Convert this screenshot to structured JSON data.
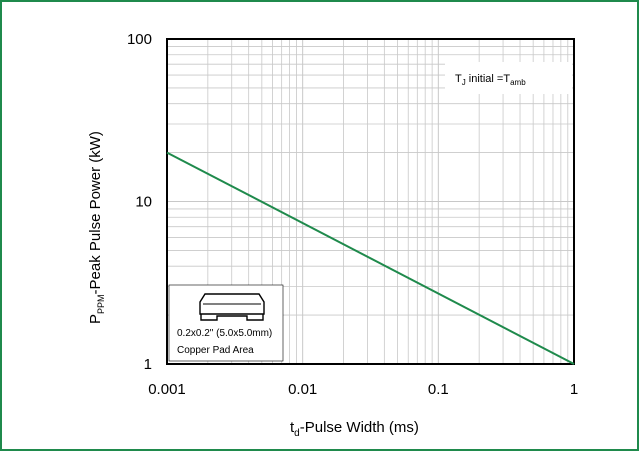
{
  "chart_data": {
    "type": "line",
    "x_scale": "log",
    "y_scale": "log",
    "xlim": [
      0.001,
      1
    ],
    "ylim": [
      1,
      100
    ],
    "grid": true,
    "xlabel_main": "t",
    "xlabel_sub": "d",
    "xlabel_rest": "-Pulse Width (ms)",
    "ylabel_main": "P",
    "ylabel_sub": "PPM",
    "ylabel_rest": "-Peak Pulse Power (kW)",
    "x_ticks": [
      {
        "value": 0.001,
        "label": "0.001"
      },
      {
        "value": 0.01,
        "label": "0.01"
      },
      {
        "value": 0.1,
        "label": "0.1"
      },
      {
        "value": 1,
        "label": "1"
      }
    ],
    "y_ticks": [
      {
        "value": 1,
        "label": "1"
      },
      {
        "value": 10,
        "label": "10"
      },
      {
        "value": 100,
        "label": "100"
      }
    ],
    "series": [
      {
        "color": "#1f8a4c",
        "x": [
          0.001,
          1
        ],
        "y": [
          20,
          1
        ]
      }
    ],
    "annotation": {
      "t_main": "T",
      "t_sub": "J",
      "mid": " initial =",
      "t2_main": "T",
      "t2_sub": "amb",
      "placement": "top-right"
    },
    "inset": {
      "line1": "0.2x0.2\" (5.0x5.0mm)",
      "line2": "Copper Pad Area",
      "placement": "bottom-left"
    }
  }
}
